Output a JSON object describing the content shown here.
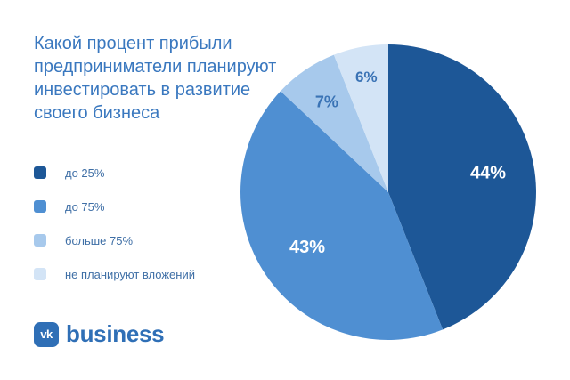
{
  "title_lines": [
    "Какой процент прибыли",
    "предприниматели планируют",
    "инвестировать в развитие",
    "своего бизнеса"
  ],
  "chart_data": {
    "type": "pie",
    "title": "Какой процент прибыли предприниматели планируют инвестировать в развитие своего бизнеса",
    "start": "12 o'clock, clockwise",
    "categories": [
      "до 25%",
      "до 75%",
      "больше 75%",
      "не планируют вложений"
    ],
    "values": [
      44,
      43,
      7,
      6
    ],
    "labels": [
      "44%",
      "43%",
      "7%",
      "6%"
    ],
    "colors": [
      "#1d5797",
      "#4f8fd2",
      "#a7c9ec",
      "#d3e4f6"
    ],
    "label_colors": [
      "#ffffff",
      "#ffffff",
      "#3a73b5",
      "#3a73b5"
    ],
    "legend_position": "left"
  },
  "brand": {
    "icon_text": "vk",
    "name": "business"
  }
}
